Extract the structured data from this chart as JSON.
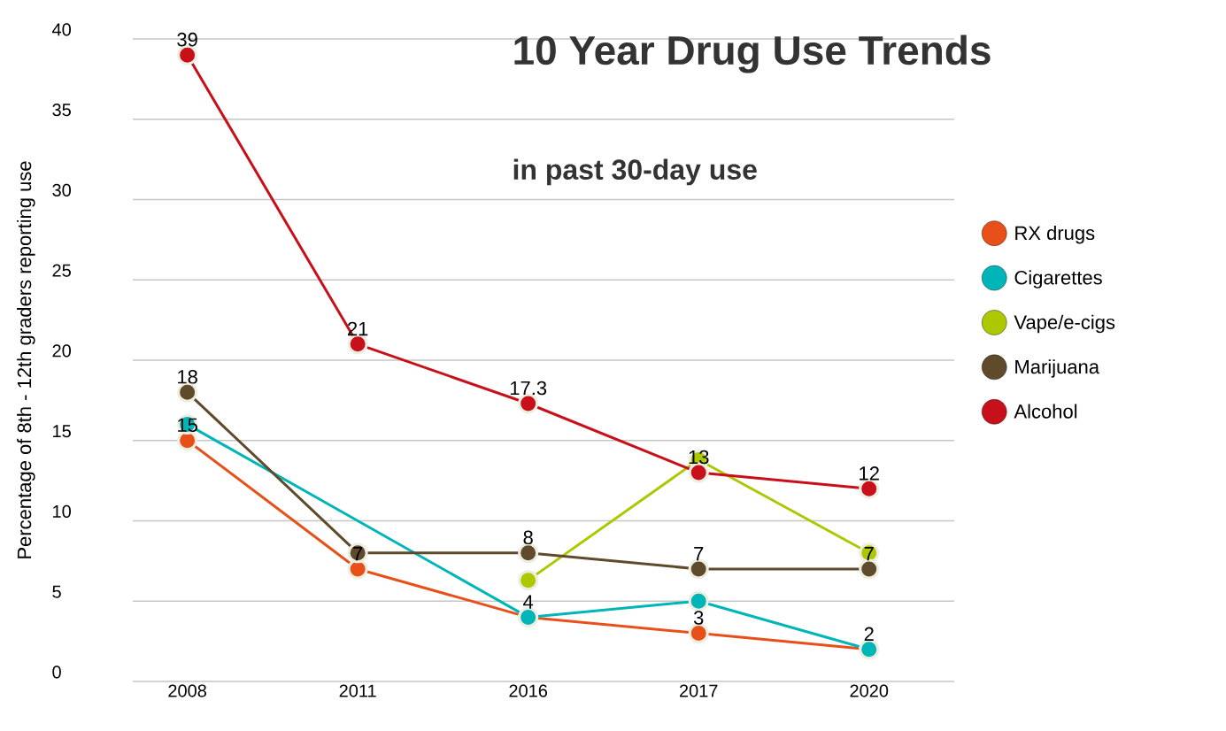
{
  "chart_data": {
    "type": "line",
    "title": "10 Year Drug Use Trends",
    "subtitle": "in past 30-day use",
    "ylabel": "Percentage of 8th - 12th graders reporting use",
    "categories": [
      "2008",
      "2011",
      "2016",
      "2017",
      "2020"
    ],
    "series": [
      {
        "name": "RX drugs",
        "color": "#e8501a",
        "values": [
          15,
          7,
          4,
          3,
          2
        ],
        "value_labels": [
          "15",
          "7",
          "4",
          "3",
          "2"
        ]
      },
      {
        "name": "Cigarettes",
        "color": "#00b5b8",
        "values": [
          16,
          null,
          4,
          5,
          2
        ]
      },
      {
        "name": "Vape/e-cigs",
        "color": "#adc700",
        "values": [
          null,
          null,
          6.3,
          13.8,
          8
        ]
      },
      {
        "name": "Marijuana",
        "color": "#604a2c",
        "values": [
          18,
          8,
          8,
          7,
          7
        ],
        "value_labels": [
          "18",
          null,
          "8",
          "7",
          "7"
        ]
      },
      {
        "name": "Alcohol",
        "color": "#c8101a",
        "values": [
          39,
          21,
          17.3,
          13,
          12
        ],
        "value_labels": [
          "39",
          "21",
          "17.3",
          "13",
          "12"
        ]
      }
    ],
    "ylim": [
      0,
      40
    ],
    "yticks": [
      0,
      5,
      10,
      15,
      20,
      25,
      30,
      35,
      40
    ],
    "grid": "y",
    "legend": "right",
    "marker": "circle",
    "line_style": "solid"
  }
}
